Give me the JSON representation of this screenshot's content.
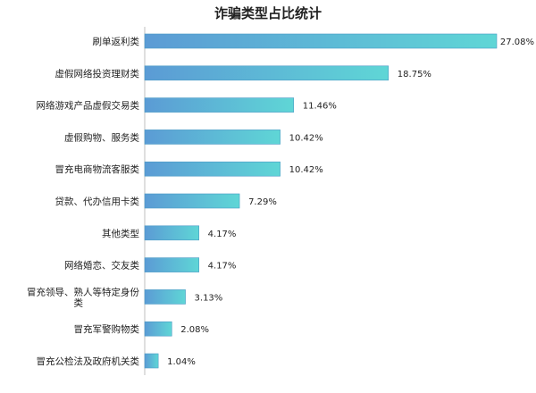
{
  "chart_data": {
    "type": "bar",
    "orientation": "horizontal",
    "title": "诈骗类型占比统计",
    "categories": [
      "刷单返利类",
      "虚假网络投资理财类",
      "网络游戏产品虚假交易类",
      "虚假购物、服务类",
      "冒充电商物流客服类",
      "贷款、代办信用卡类",
      "其他类型",
      "网络婚恋、交友类",
      "冒充领导、熟人等特定身份类",
      "冒充军警购物类",
      "冒充公检法及政府机关类"
    ],
    "values": [
      27.08,
      18.75,
      11.46,
      10.42,
      10.42,
      7.29,
      4.17,
      4.17,
      3.13,
      2.08,
      1.04
    ],
    "value_labels": [
      "27.08%",
      "18.75%",
      "11.46%",
      "10.42%",
      "10.42%",
      "7.29%",
      "4.17%",
      "4.17%",
      "3.13%",
      "2.08%",
      "1.04%"
    ],
    "xlim": [
      0,
      27.08
    ],
    "grid": false,
    "legend": "none",
    "colors": {
      "bar_start": "#5b9bd5",
      "bar_end": "#5fd6d6",
      "bar_stroke": "#4a9ac4",
      "axis": "#bfbfbf",
      "text": "#222222"
    }
  }
}
